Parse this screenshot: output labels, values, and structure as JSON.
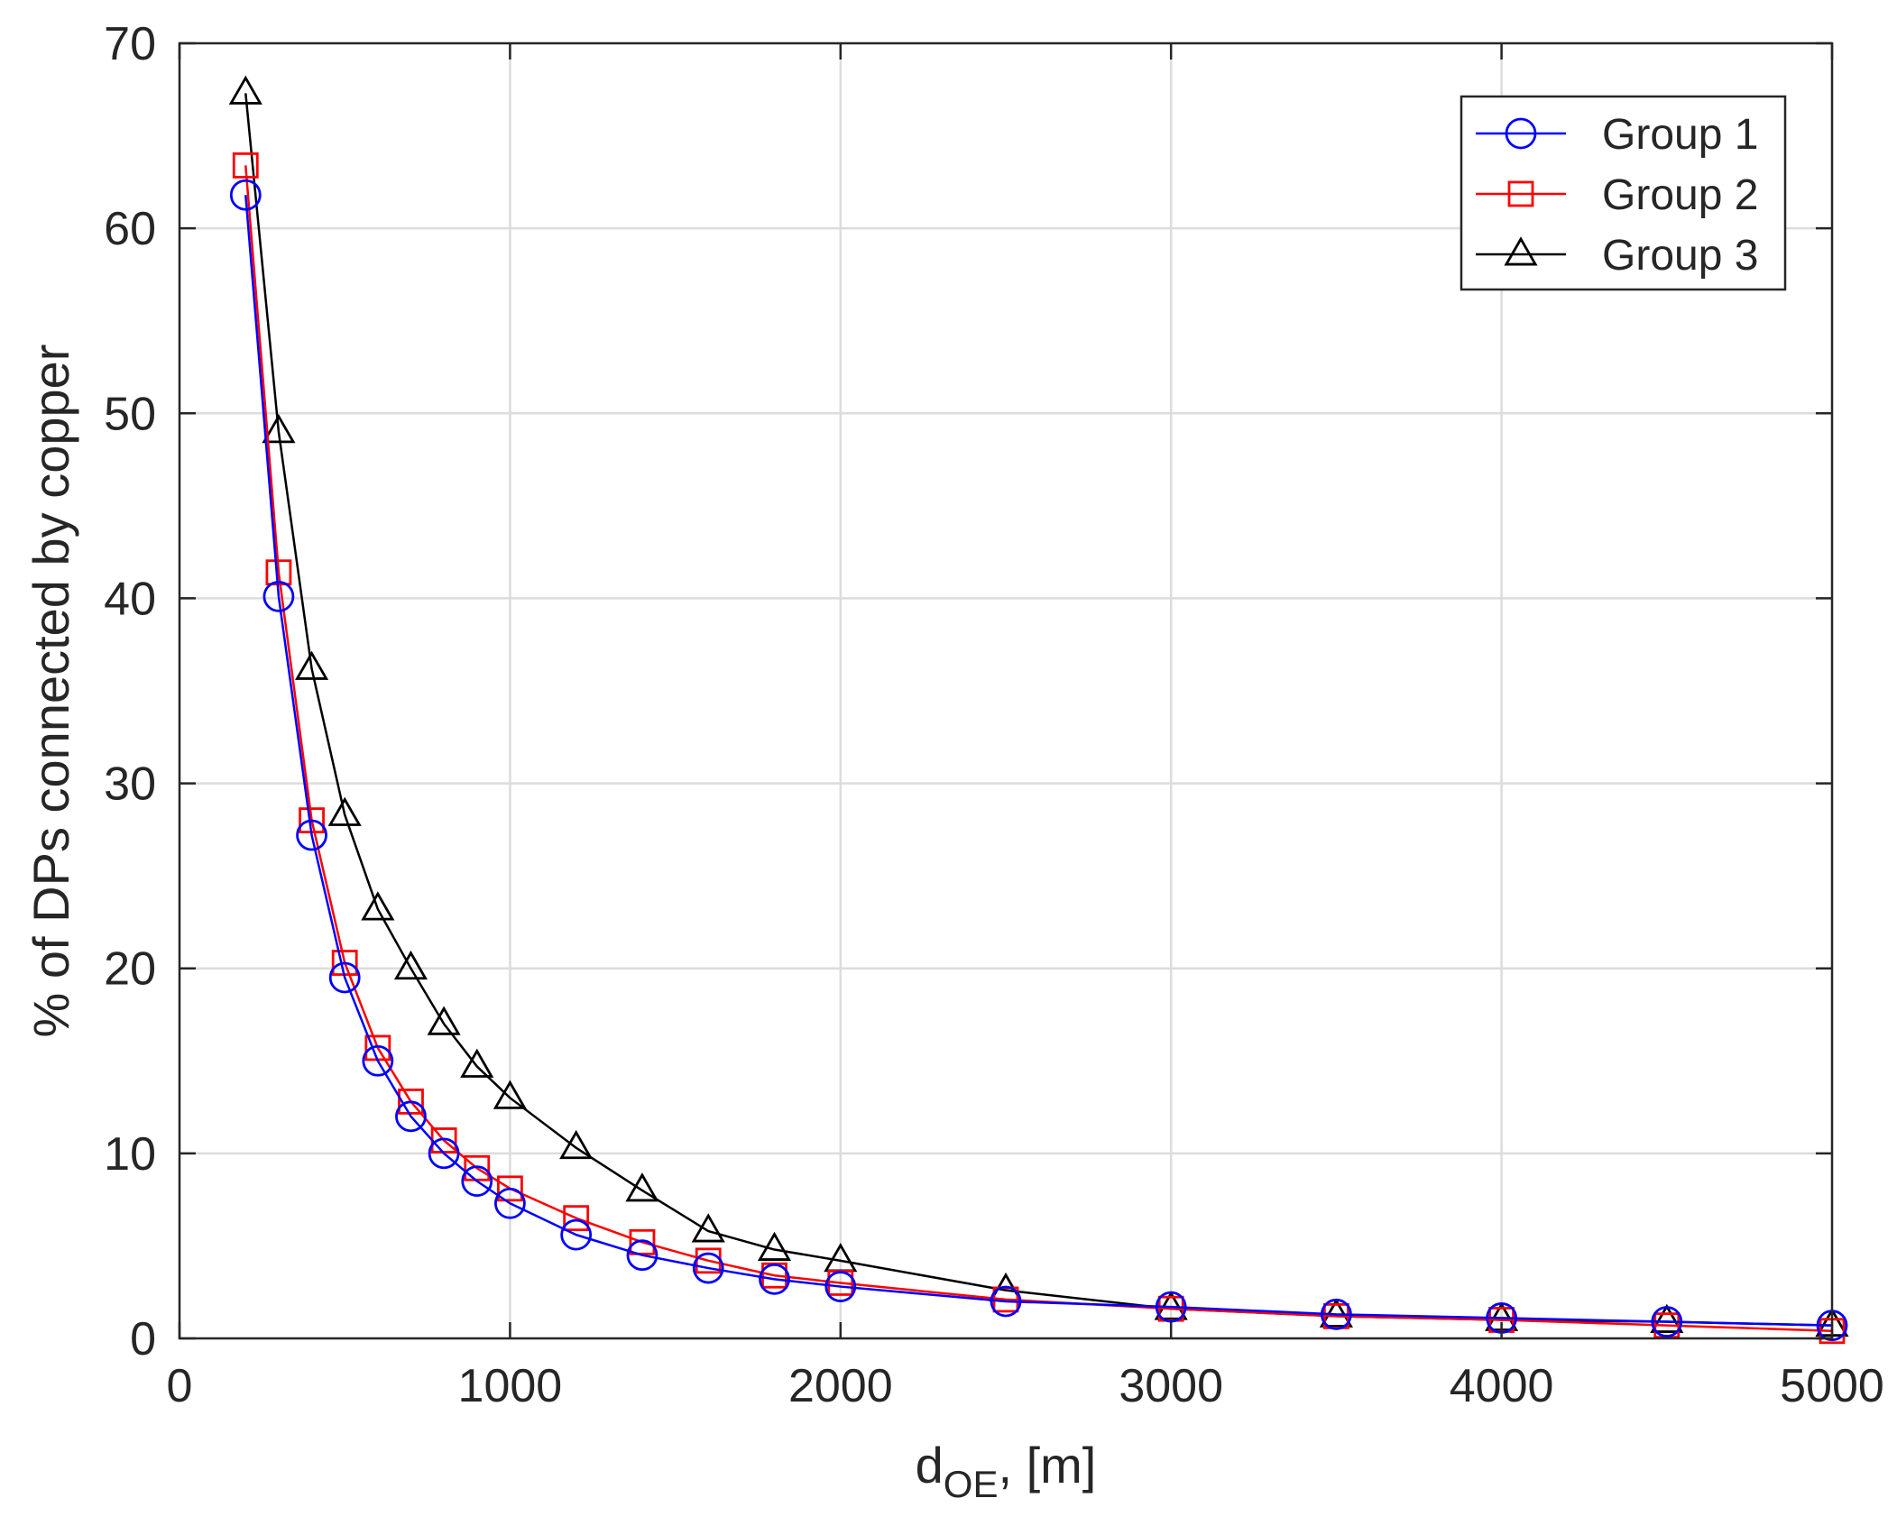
{
  "chart_data": {
    "type": "line",
    "title": "",
    "xlabel": {
      "main": "d",
      "sub": "OE",
      "suffix": ", [m]"
    },
    "ylabel": "% of DPs connected by copper",
    "xlim": [
      0,
      5000
    ],
    "ylim": [
      0,
      70
    ],
    "xticks": [
      0,
      1000,
      2000,
      3000,
      4000,
      5000
    ],
    "yticks": [
      0,
      10,
      20,
      30,
      40,
      50,
      60,
      70
    ],
    "xtick_labels": [
      "0",
      "1000",
      "2000",
      "3000",
      "4000",
      "5000"
    ],
    "ytick_labels": [
      "0",
      "10",
      "20",
      "30",
      "40",
      "50",
      "60",
      "70"
    ],
    "grid": true,
    "legend_position": "top-right",
    "x": [
      200,
      300,
      400,
      500,
      600,
      700,
      800,
      900,
      1000,
      1200,
      1400,
      1600,
      1800,
      2000,
      2500,
      3000,
      3500,
      4000,
      4500,
      5000
    ],
    "series": [
      {
        "name": "Group 1",
        "color": "#0000ff",
        "marker": "circle",
        "values": [
          61.8,
          40.1,
          27.2,
          19.5,
          15.0,
          12.0,
          10.0,
          8.5,
          7.3,
          5.6,
          4.5,
          3.8,
          3.2,
          2.8,
          2.0,
          1.7,
          1.3,
          1.1,
          0.9,
          0.7
        ]
      },
      {
        "name": "Group 2",
        "color": "#ff0000",
        "marker": "square",
        "values": [
          63.4,
          41.4,
          28.0,
          20.3,
          15.7,
          12.8,
          10.7,
          9.2,
          8.1,
          6.5,
          5.2,
          4.2,
          3.4,
          3.0,
          2.1,
          1.6,
          1.2,
          1.0,
          0.7,
          0.4
        ]
      },
      {
        "name": "Group 3",
        "color": "#000000",
        "marker": "triangle",
        "values": [
          67.3,
          49.0,
          36.2,
          28.3,
          23.2,
          20.0,
          17.0,
          14.7,
          13.0,
          10.3,
          8.0,
          5.8,
          4.8,
          4.2,
          2.6,
          1.6,
          1.2,
          1.0,
          0.9,
          0.7
        ]
      }
    ]
  }
}
